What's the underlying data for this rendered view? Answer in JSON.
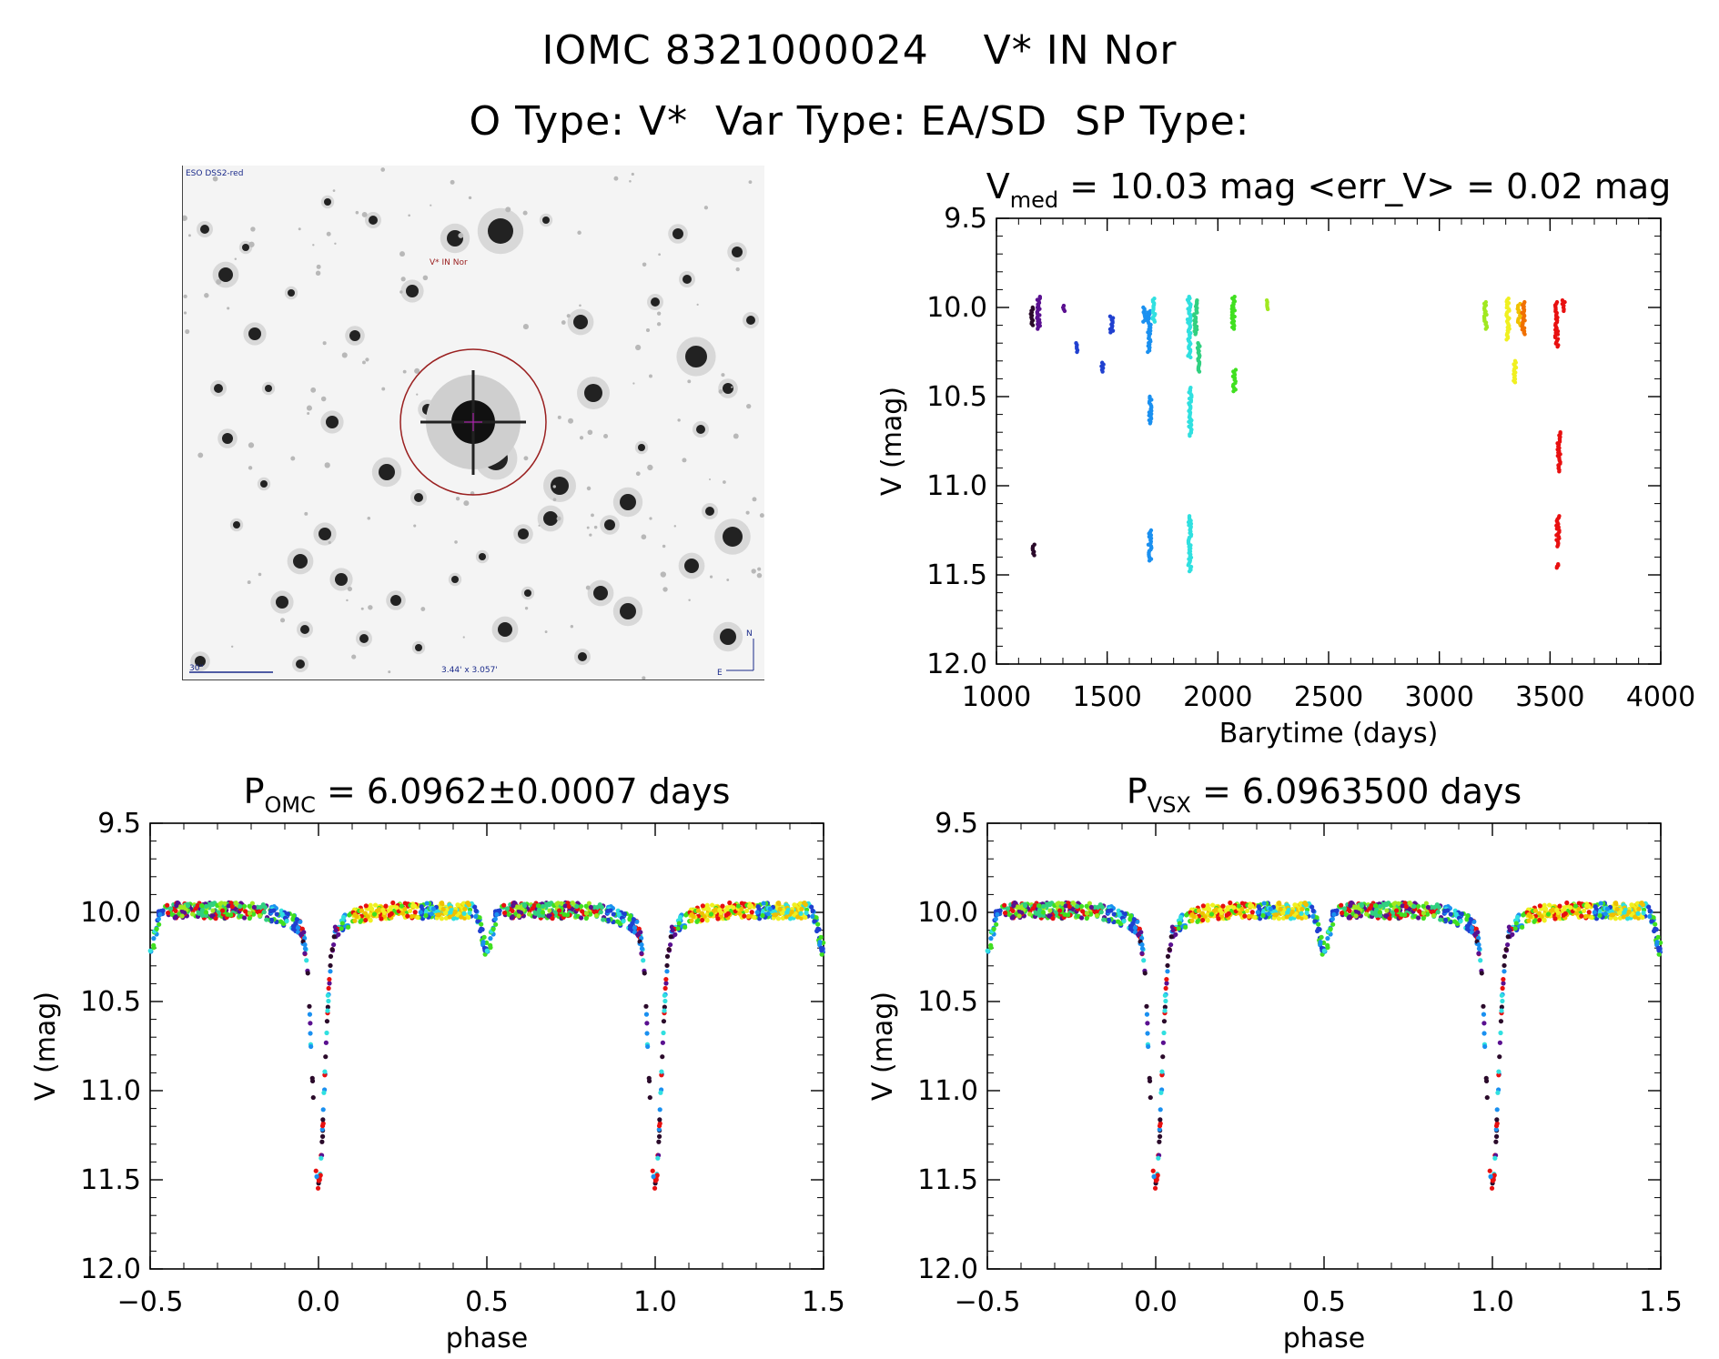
{
  "header": {
    "title_line1": "IOMC 8321000024    V* IN Nor",
    "title_line2": "O Type: V*  Var Type: EA/SD  SP Type:"
  },
  "finder": {
    "survey_label": "ESO DSS2-red",
    "target_label": "V* IN Nor",
    "scale_label": "30\"",
    "size_label": "3.44' x 3.057'",
    "north_label": "N",
    "east_label": "E"
  },
  "colors": {
    "palette": [
      "#2a0a2a",
      "#5a1090",
      "#2040d0",
      "#1a90f0",
      "#30e0e0",
      "#30d080",
      "#40e020",
      "#a0e820",
      "#f0f020",
      "#f0c000",
      "#f07000",
      "#e81010"
    ]
  },
  "chart_data": [
    {
      "id": "lightcurve",
      "type": "scatter",
      "title_main": "V",
      "title_sub": "med",
      "title_rest": " = 10.03 mag <err_V> = 0.02 mag",
      "xlabel": "Barytime (days)",
      "ylabel": "V (mag)",
      "xlim": [
        1000,
        4000
      ],
      "ylim": [
        12.0,
        9.5
      ],
      "xticks": [
        1000,
        1500,
        2000,
        2500,
        3000,
        3500,
        4000
      ],
      "yticks": [
        9.5,
        10.0,
        10.5,
        11.0,
        11.5,
        12.0
      ],
      "ytick_labels": [
        "9.5",
        "10.0",
        "10.5",
        "11.0",
        "11.5",
        "12.0"
      ],
      "clusters": [
        {
          "x": 1160,
          "ymin": 10.0,
          "ymax": 10.1,
          "c": 0
        },
        {
          "x": 1165,
          "ymin": 11.33,
          "ymax": 11.39,
          "c": 0
        },
        {
          "x": 1190,
          "ymin": 9.94,
          "ymax": 10.12,
          "c": 1
        },
        {
          "x": 1305,
          "ymin": 9.99,
          "ymax": 10.02,
          "c": 1
        },
        {
          "x": 1360,
          "ymin": 10.2,
          "ymax": 10.25,
          "c": 2
        },
        {
          "x": 1480,
          "ymin": 10.31,
          "ymax": 10.36,
          "c": 2
        },
        {
          "x": 1520,
          "ymin": 10.05,
          "ymax": 10.14,
          "c": 2
        },
        {
          "x": 1670,
          "ymin": 10.0,
          "ymax": 10.08,
          "c": 3
        },
        {
          "x": 1690,
          "ymin": 10.02,
          "ymax": 10.25,
          "c": 3
        },
        {
          "x": 1695,
          "ymin": 10.5,
          "ymax": 10.65,
          "c": 3
        },
        {
          "x": 1693,
          "ymin": 11.25,
          "ymax": 11.42,
          "c": 3
        },
        {
          "x": 1710,
          "ymin": 9.95,
          "ymax": 10.08,
          "c": 4
        },
        {
          "x": 1870,
          "ymin": 9.94,
          "ymax": 10.28,
          "c": 4
        },
        {
          "x": 1875,
          "ymin": 10.45,
          "ymax": 10.72,
          "c": 4
        },
        {
          "x": 1873,
          "ymin": 11.17,
          "ymax": 11.48,
          "c": 4
        },
        {
          "x": 1900,
          "ymin": 9.96,
          "ymax": 10.15,
          "c": 5
        },
        {
          "x": 1915,
          "ymin": 10.2,
          "ymax": 10.36,
          "c": 5
        },
        {
          "x": 2070,
          "ymin": 9.94,
          "ymax": 10.12,
          "c": 6
        },
        {
          "x": 2075,
          "ymin": 10.35,
          "ymax": 10.47,
          "c": 6
        },
        {
          "x": 2220,
          "ymin": 9.96,
          "ymax": 10.01,
          "c": 7
        },
        {
          "x": 3210,
          "ymin": 9.97,
          "ymax": 10.12,
          "c": 7
        },
        {
          "x": 3310,
          "ymin": 9.95,
          "ymax": 10.18,
          "c": 8
        },
        {
          "x": 3340,
          "ymin": 10.3,
          "ymax": 10.42,
          "c": 8
        },
        {
          "x": 3360,
          "ymin": 9.98,
          "ymax": 10.1,
          "c": 9
        },
        {
          "x": 3380,
          "ymin": 9.97,
          "ymax": 10.15,
          "c": 10
        },
        {
          "x": 3530,
          "ymin": 9.97,
          "ymax": 10.22,
          "c": 11
        },
        {
          "x": 3540,
          "ymin": 10.7,
          "ymax": 10.92,
          "c": 11
        },
        {
          "x": 3535,
          "ymin": 11.17,
          "ymax": 11.34,
          "c": 11
        },
        {
          "x": 3537,
          "ymin": 11.44,
          "ymax": 11.46,
          "c": 11
        },
        {
          "x": 3560,
          "ymin": 9.96,
          "ymax": 10.02,
          "c": 11
        }
      ]
    },
    {
      "id": "phase_omc",
      "type": "scatter",
      "title_main": "P",
      "title_sub": "OMC",
      "title_rest": " = 6.0962±0.0007 days",
      "xlabel": "phase",
      "ylabel": "V (mag)",
      "xlim": [
        -0.5,
        1.5
      ],
      "ylim": [
        12.0,
        9.5
      ],
      "xticks": [
        -0.5,
        0.0,
        0.5,
        1.0,
        1.5
      ],
      "xtick_labels": [
        "−0.5",
        "0.0",
        "0.5",
        "1.0",
        "1.5"
      ],
      "yticks": [
        9.5,
        10.0,
        10.5,
        11.0,
        11.5,
        12.0
      ],
      "ytick_labels": [
        "9.5",
        "10.0",
        "10.5",
        "11.0",
        "11.5",
        "12.0"
      ],
      "curve": {
        "base": 10.0,
        "primary_depth": 1.42,
        "primary_width": 0.025,
        "secondary_depth": 0.22,
        "secondary_width": 0.02
      }
    },
    {
      "id": "phase_vsx",
      "type": "scatter",
      "title_main": "P",
      "title_sub": "VSX",
      "title_rest": " = 6.0963500 days",
      "xlabel": "phase",
      "ylabel": "V (mag)",
      "xlim": [
        -0.5,
        1.5
      ],
      "ylim": [
        12.0,
        9.5
      ],
      "xticks": [
        -0.5,
        0.0,
        0.5,
        1.0,
        1.5
      ],
      "xtick_labels": [
        "−0.5",
        "0.0",
        "0.5",
        "1.0",
        "1.5"
      ],
      "yticks": [
        9.5,
        10.0,
        10.5,
        11.0,
        11.5,
        12.0
      ],
      "ytick_labels": [
        "9.5",
        "10.0",
        "10.5",
        "11.0",
        "11.5",
        "12.0"
      ],
      "curve": {
        "base": 10.0,
        "primary_depth": 1.42,
        "primary_width": 0.025,
        "secondary_depth": 0.22,
        "secondary_width": 0.02
      }
    }
  ]
}
